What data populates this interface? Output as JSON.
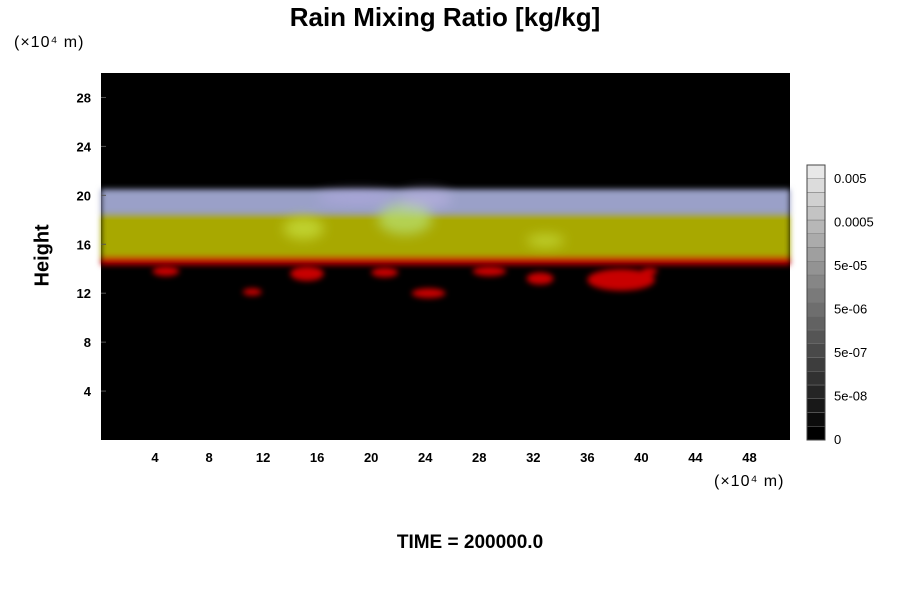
{
  "chart_data": {
    "type": "heatmap",
    "title": "Rain Mixing Ratio [kg/kg]",
    "ylabel": "Height",
    "x_unit": "(×10⁴ m)",
    "y_unit": "(×10⁴ m)",
    "x_ticks": [
      "4",
      "8",
      "12",
      "16",
      "20",
      "24",
      "28",
      "32",
      "36",
      "40",
      "44",
      "48"
    ],
    "y_ticks": [
      "4",
      "8",
      "12",
      "16",
      "20",
      "24",
      "28"
    ],
    "xlim": [
      0,
      51
    ],
    "ylim": [
      0,
      30
    ],
    "colorbar": {
      "labels": [
        "0.005",
        "0.0005",
        "5e-05",
        "5e-06",
        "5e-07",
        "5e-08",
        "0"
      ],
      "label_values": [
        0.005,
        0.0005,
        5e-05,
        5e-06,
        5e-07,
        5e-08,
        0
      ]
    },
    "bands": [
      {
        "y_from": 18.5,
        "y_to": 20.5,
        "color": "#9aa0c8"
      },
      {
        "y_from": 15.0,
        "y_to": 18.5,
        "color": "#a8a800"
      },
      {
        "y_from": 14.3,
        "y_to": 15.0,
        "color": "#c00000"
      }
    ],
    "rain_patches": [
      {
        "x": 3.8,
        "y": 13.4,
        "w": 2.0,
        "h": 0.8
      },
      {
        "x": 10.5,
        "y": 11.8,
        "w": 1.4,
        "h": 0.6
      },
      {
        "x": 14.0,
        "y": 13.0,
        "w": 2.5,
        "h": 1.2
      },
      {
        "x": 20.0,
        "y": 13.3,
        "w": 2.0,
        "h": 0.8
      },
      {
        "x": 23.0,
        "y": 11.6,
        "w": 2.5,
        "h": 0.8
      },
      {
        "x": 27.5,
        "y": 13.4,
        "w": 2.5,
        "h": 0.8
      },
      {
        "x": 31.5,
        "y": 12.7,
        "w": 2.0,
        "h": 1.0
      },
      {
        "x": 36.0,
        "y": 12.2,
        "w": 5.0,
        "h": 1.8
      },
      {
        "x": 40.0,
        "y": 13.5,
        "w": 1.2,
        "h": 0.6
      }
    ],
    "bright_patches": [
      {
        "x": 13.5,
        "y": 16.4,
        "w": 3.0,
        "h": 1.8,
        "color": "#c8e040"
      },
      {
        "x": 20.5,
        "y": 16.8,
        "w": 4.0,
        "h": 2.5,
        "color": "#b8e070"
      },
      {
        "x": 31.5,
        "y": 15.8,
        "w": 2.8,
        "h": 1.0,
        "color": "#c8e040"
      },
      {
        "x": 16.0,
        "y": 19.3,
        "w": 6.0,
        "h": 1.0,
        "color": "#b0a8e0"
      },
      {
        "x": 22.0,
        "y": 19.0,
        "w": 4.0,
        "h": 1.4,
        "color": "#b8b0e0"
      }
    ]
  },
  "footer": {
    "time_label": "TIME = ",
    "time_value": "200000.0"
  }
}
